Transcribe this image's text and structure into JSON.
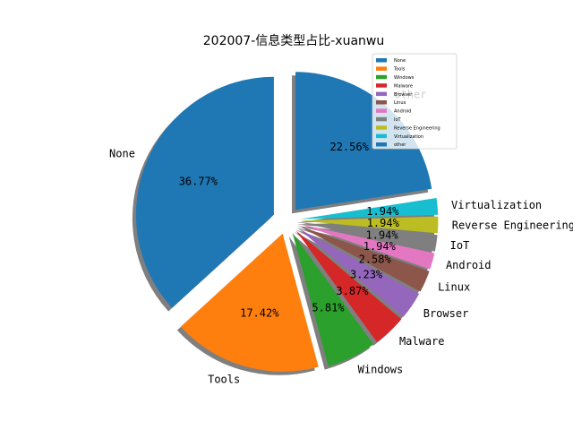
{
  "chart_data": {
    "type": "pie",
    "title": "202007-信息类型占比-xuanwu",
    "categories": [
      "None",
      "Tools",
      "Windows",
      "Malware",
      "Browser",
      "Linux",
      "Android",
      "IoT",
      "Reverse Engineering",
      "Virtualization",
      "other"
    ],
    "values": [
      36.77,
      17.42,
      5.81,
      3.87,
      3.23,
      2.58,
      1.94,
      1.94,
      1.94,
      1.94,
      22.56
    ],
    "percent_labels": [
      "36.77%",
      "17.42%",
      "5.81%",
      "3.87%",
      "3.23%",
      "2.58%",
      "1.94%",
      "1.94%",
      "1.94%",
      "1.94%",
      "22.56%"
    ],
    "legend": [
      "None",
      "Tools",
      "Windows",
      "Malware",
      "Browser",
      "Linux",
      "Android",
      "IoT",
      "Reverse Engineering",
      "Virtualization",
      "other"
    ],
    "colors": [
      "#1f77b4",
      "#ff7f0e",
      "#2ca02c",
      "#d62728",
      "#9467bd",
      "#8c564b",
      "#e377c2",
      "#7f7f7f",
      "#bcbd22",
      "#17becf",
      "#1f77b4"
    ],
    "explode": [
      0.1,
      0.1,
      0.1,
      0.1,
      0.1,
      0.1,
      0.1,
      0.1,
      0.1,
      0.1,
      0.1
    ],
    "start_angle_deg": 90,
    "shadow": true,
    "legend_position": "upper-right"
  }
}
